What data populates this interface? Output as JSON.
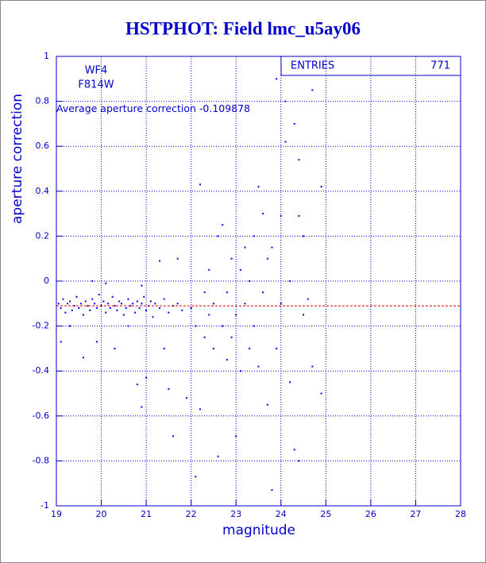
{
  "chart_data": {
    "type": "scatter",
    "title": "HSTPHOT: Field lmc_u5ay06",
    "x_label": "magnitude",
    "y_label": "aperture correction",
    "annotations": [
      "WF4",
      "F814W"
    ],
    "average_label": "Average aperture correction",
    "average": -0.109878,
    "average_color": "#dd0000",
    "stats": {
      "label": "ENTRIES",
      "value": 771
    },
    "color": "#0000ee",
    "grid": true,
    "xlim": [
      19,
      28
    ],
    "xticks": [
      19,
      20,
      21,
      22,
      23,
      24,
      25,
      26,
      27,
      28
    ],
    "ylim": [
      -1,
      1
    ],
    "yticks": [
      -1,
      -0.8,
      -0.6,
      -0.4,
      -0.2,
      0,
      0.2,
      0.4,
      0.6,
      0.8,
      1
    ],
    "x": [
      19.05,
      19.1,
      19.15,
      19.2,
      19.25,
      19.3,
      19.35,
      19.4,
      19.45,
      19.5,
      19.55,
      19.6,
      19.65,
      19.7,
      19.75,
      19.8,
      19.85,
      19.9,
      19.95,
      20.0,
      20.05,
      20.1,
      20.15,
      20.2,
      20.25,
      20.3,
      20.35,
      20.4,
      20.45,
      20.5,
      20.55,
      20.6,
      20.65,
      20.7,
      20.75,
      20.8,
      20.85,
      20.9,
      20.95,
      21.0,
      21.05,
      21.1,
      21.15,
      21.2,
      21.3,
      21.4,
      21.5,
      21.6,
      21.7,
      21.8,
      19.1,
      19.3,
      19.6,
      19.9,
      20.1,
      19.8,
      20.3,
      20.6,
      20.8,
      20.9,
      21.0,
      20.9,
      21.3,
      21.5,
      21.6,
      21.4,
      21.9,
      21.7,
      22.0,
      22.1,
      22.2,
      22.1,
      22.2,
      22.3,
      22.3,
      22.4,
      22.4,
      22.5,
      22.5,
      22.6,
      22.6,
      22.7,
      22.7,
      22.8,
      22.8,
      22.9,
      22.9,
      23.0,
      23.0,
      23.1,
      23.1,
      23.2,
      23.2,
      23.3,
      23.3,
      23.4,
      23.4,
      23.5,
      23.5,
      23.6,
      23.6,
      23.7,
      23.7,
      23.8,
      23.8,
      23.9,
      23.9,
      24.0,
      24.0,
      24.1,
      24.1,
      24.2,
      24.2,
      24.3,
      24.3,
      24.4,
      24.4,
      24.5,
      24.5,
      24.6,
      24.7,
      24.7,
      24.9,
      24.9,
      24.4
    ],
    "y": [
      -0.1,
      -0.12,
      -0.08,
      -0.14,
      -0.1,
      -0.09,
      -0.13,
      -0.11,
      -0.07,
      -0.12,
      -0.1,
      -0.15,
      -0.09,
      -0.11,
      -0.13,
      -0.08,
      -0.1,
      -0.12,
      -0.06,
      -0.11,
      -0.09,
      -0.14,
      -0.1,
      -0.12,
      -0.07,
      -0.11,
      -0.13,
      -0.09,
      -0.1,
      -0.15,
      -0.12,
      -0.08,
      -0.11,
      -0.1,
      -0.14,
      -0.09,
      -0.12,
      -0.1,
      -0.07,
      -0.13,
      -0.11,
      -0.09,
      -0.16,
      -0.1,
      -0.12,
      -0.08,
      -0.14,
      -0.11,
      -0.1,
      -0.13,
      -0.27,
      -0.2,
      -0.34,
      -0.27,
      -0.01,
      0,
      -0.3,
      -0.2,
      -0.46,
      -0.56,
      -0.43,
      -0.02,
      0.09,
      -0.48,
      -0.69,
      -0.3,
      -0.52,
      0.1,
      -0.12,
      -0.2,
      0.43,
      -0.87,
      -0.57,
      -0.05,
      -0.25,
      -0.15,
      0.05,
      -0.3,
      -0.1,
      -0.78,
      0.2,
      -0.2,
      0.25,
      -0.35,
      -0.05,
      0.1,
      -0.25,
      -0.69,
      -0.15,
      0.05,
      -0.4,
      0.15,
      -0.1,
      -0.3,
      0,
      0.2,
      -0.2,
      0.42,
      -0.38,
      0.3,
      -0.05,
      0.1,
      -0.55,
      -0.93,
      0.15,
      0.9,
      -0.3,
      0.29,
      -0.1,
      0.8,
      0.62,
      0,
      -0.45,
      0.7,
      -0.75,
      0.54,
      0.29,
      -0.15,
      0.2,
      -0.08,
      0.85,
      -0.38,
      0.42,
      -0.5,
      -0.8
    ]
  }
}
